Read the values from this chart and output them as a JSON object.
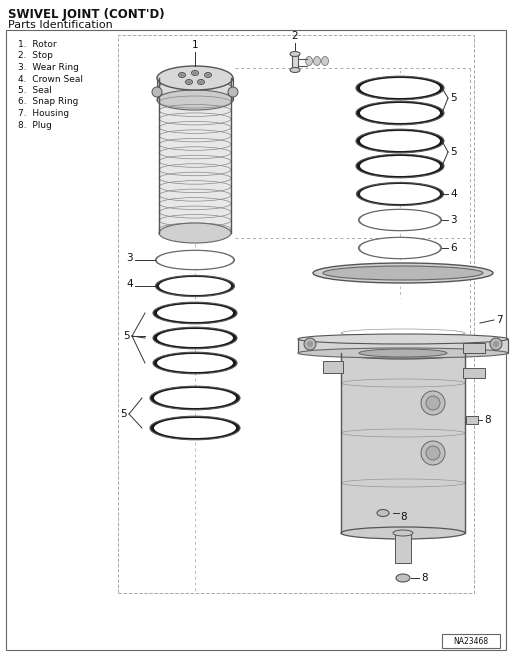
{
  "title": "SWIVEL JOINT (CONT'D)",
  "subtitle": "Parts Identification",
  "parts_list": [
    "1.  Rotor",
    "2.  Stop",
    "3.  Wear Ring",
    "4.  Crown Seal",
    "5.  Seal",
    "6.  Snap Ring",
    "7.  Housing",
    "8.  Plug"
  ],
  "diagram_id": "NA23468",
  "bg_color": "#ffffff",
  "line_color": "#333333",
  "text_color": "#111111"
}
